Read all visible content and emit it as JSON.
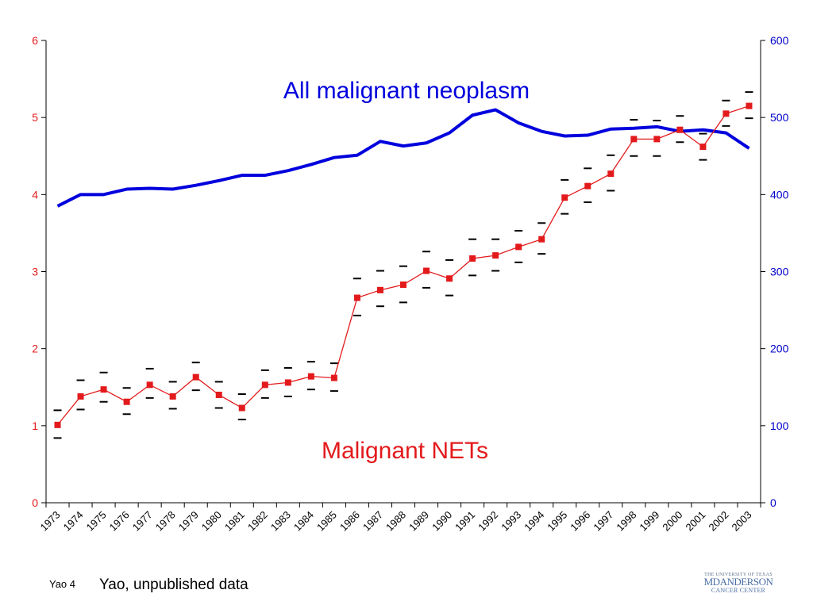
{
  "chart_data": {
    "type": "line",
    "categories": [
      "1973",
      "1974",
      "1975",
      "1976",
      "1977",
      "1978",
      "1979",
      "1980",
      "1981",
      "1982",
      "1983",
      "1984",
      "1985",
      "1986",
      "1987",
      "1988",
      "1989",
      "1990",
      "1991",
      "1992",
      "1993",
      "1994",
      "1995",
      "1996",
      "1997",
      "1998",
      "1999",
      "2000",
      "2001",
      "2002",
      "2003"
    ],
    "y_left": {
      "range": [
        0,
        6
      ],
      "ticks": [
        "0",
        "1",
        "2",
        "3",
        "4",
        "5",
        "6"
      ],
      "color": "#e31a1c"
    },
    "y_right": {
      "range": [
        0,
        600
      ],
      "ticks": [
        "0",
        "100",
        "200",
        "300",
        "400",
        "500",
        "600"
      ],
      "color": "#0000cc"
    },
    "series": [
      {
        "name": "All malignant neoplasm",
        "axis": "right",
        "color": "#0000dd",
        "values": [
          385,
          400,
          400,
          407,
          408,
          407,
          412,
          418,
          425,
          425,
          431,
          439,
          448,
          451,
          469,
          463,
          467,
          480,
          503,
          510,
          493,
          482,
          476,
          477,
          485,
          486,
          488,
          482,
          484,
          480,
          460
        ]
      },
      {
        "name": "Malignant NETs",
        "axis": "left",
        "color": "#e31a1c",
        "values": [
          1.01,
          1.38,
          1.47,
          1.31,
          1.53,
          1.38,
          1.63,
          1.4,
          1.23,
          1.53,
          1.56,
          1.64,
          1.62,
          2.66,
          2.76,
          2.83,
          3.01,
          2.91,
          3.17,
          3.21,
          3.32,
          3.42,
          3.96,
          4.11,
          4.27,
          4.72,
          4.72,
          4.84,
          4.62,
          5.05,
          5.15
        ],
        "upper": [
          1.2,
          1.59,
          1.69,
          1.49,
          1.74,
          1.57,
          1.82,
          1.57,
          1.41,
          1.72,
          1.75,
          1.83,
          1.81,
          2.91,
          3.01,
          3.07,
          3.26,
          3.15,
          3.42,
          3.42,
          3.53,
          3.63,
          4.19,
          4.34,
          4.51,
          4.97,
          4.96,
          5.02,
          4.79,
          5.22,
          5.33
        ],
        "lower": [
          0.84,
          1.21,
          1.31,
          1.15,
          1.36,
          1.22,
          1.46,
          1.23,
          1.08,
          1.36,
          1.38,
          1.47,
          1.45,
          2.43,
          2.55,
          2.6,
          2.79,
          2.69,
          2.95,
          3.01,
          3.12,
          3.23,
          3.75,
          3.9,
          4.05,
          4.5,
          4.5,
          4.68,
          4.45,
          4.89,
          4.99
        ]
      }
    ],
    "annotations": [
      {
        "text": "All malignant neoplasm",
        "color": "#0000dd"
      },
      {
        "text": "Malignant NETs",
        "color": "#e31a1c"
      }
    ],
    "grid": false
  },
  "footer": {
    "slide_id": "Yao 4",
    "source": "Yao, unpublished data"
  },
  "logo": {
    "top": "THE UNIVERSITY OF TEXAS",
    "main": "MDANDERSON",
    "bottom": "CANCER CENTER"
  }
}
